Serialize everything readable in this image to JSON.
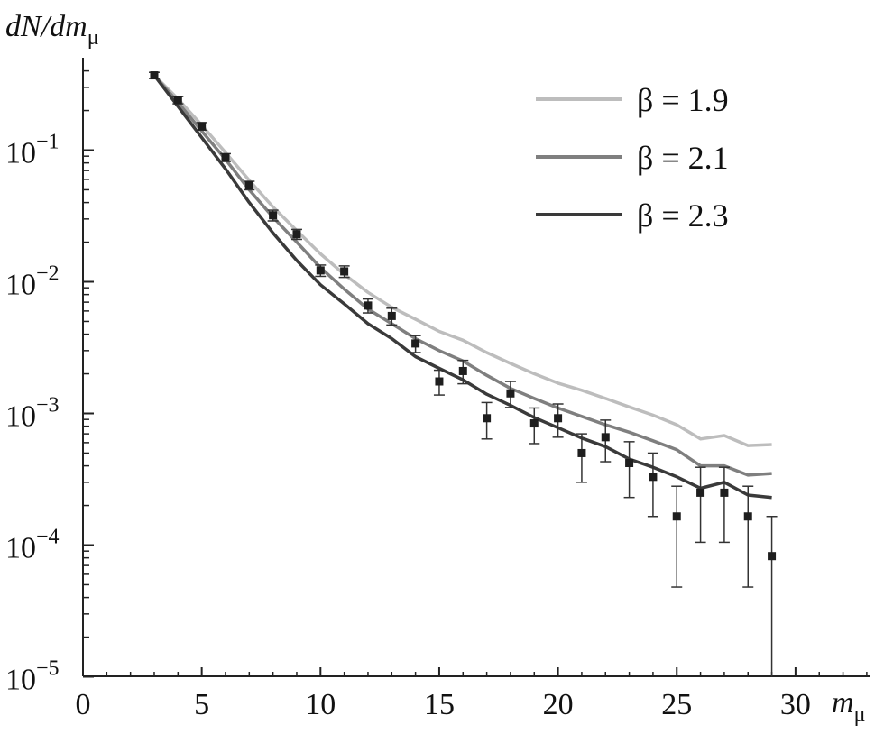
{
  "chart_data": {
    "type": "line",
    "ylabel_main": "dN/dm",
    "ylabel_sub": "μ",
    "xlabel_main": "m",
    "xlabel_sub": "μ",
    "xlim": [
      0,
      33
    ],
    "ylim": [
      1e-05,
      1
    ],
    "yscale": "log",
    "grid": false,
    "legend_position": "top-right",
    "x_ticks": [
      "0",
      "5",
      "10",
      "15",
      "20",
      "25",
      "30"
    ],
    "y_ticks": [
      {
        "base": "10",
        "exp": "−1",
        "value": 0.1
      },
      {
        "base": "10",
        "exp": "−2",
        "value": 0.01
      },
      {
        "base": "10",
        "exp": "−3",
        "value": 0.001
      },
      {
        "base": "10",
        "exp": "−4",
        "value": 0.0001
      },
      {
        "base": "10",
        "exp": "−5",
        "value": 1e-05
      }
    ],
    "series": [
      {
        "name": "β = 1.9",
        "color": "#bdbdbd",
        "x": [
          3,
          4,
          5,
          6,
          7,
          8,
          9,
          10,
          11,
          12,
          13,
          14,
          15,
          16,
          17,
          18,
          19,
          20,
          21,
          22,
          23,
          24,
          25,
          26,
          27,
          28,
          29
        ],
        "y": [
          0.37,
          0.245,
          0.155,
          0.096,
          0.059,
          0.037,
          0.0245,
          0.0163,
          0.0114,
          0.0083,
          0.0064,
          0.0052,
          0.0042,
          0.0036,
          0.0029,
          0.0024,
          0.002,
          0.0017,
          0.0015,
          0.0013,
          0.00112,
          0.00097,
          0.00082,
          0.00064,
          0.00068,
          0.00057,
          0.00058
        ]
      },
      {
        "name": "β = 2.1",
        "color": "#7f7f7f",
        "x": [
          3,
          4,
          5,
          6,
          7,
          8,
          9,
          10,
          11,
          12,
          13,
          14,
          15,
          16,
          17,
          18,
          19,
          20,
          21,
          22,
          23,
          24,
          25,
          26,
          27,
          28,
          29
        ],
        "y": [
          0.37,
          0.23,
          0.14,
          0.085,
          0.05,
          0.031,
          0.02,
          0.0128,
          0.0088,
          0.0062,
          0.0048,
          0.0037,
          0.003,
          0.0025,
          0.00195,
          0.00155,
          0.0013,
          0.0011,
          0.00095,
          0.00082,
          0.00072,
          0.00062,
          0.00053,
          0.0004,
          0.0004,
          0.00034,
          0.00035
        ]
      },
      {
        "name": "β = 2.3",
        "color": "#3a3a3a",
        "x": [
          3,
          4,
          5,
          6,
          7,
          8,
          9,
          10,
          11,
          12,
          13,
          14,
          15,
          16,
          17,
          18,
          19,
          20,
          21,
          22,
          23,
          24,
          25,
          26,
          27,
          28,
          29
        ],
        "y": [
          0.37,
          0.215,
          0.125,
          0.072,
          0.04,
          0.0235,
          0.0145,
          0.0095,
          0.0068,
          0.0048,
          0.0037,
          0.0027,
          0.0022,
          0.0018,
          0.0014,
          0.00115,
          0.00093,
          0.00078,
          0.00065,
          0.00056,
          0.00045,
          0.00039,
          0.00033,
          0.00027,
          0.0003,
          0.00024,
          0.00023
        ]
      }
    ],
    "points": {
      "x": [
        3,
        4,
        5,
        6,
        7,
        8,
        9,
        10,
        11,
        12,
        13,
        14,
        15,
        16,
        17,
        18,
        19,
        20,
        21,
        22,
        23,
        24,
        25,
        26,
        27,
        28,
        29
      ],
      "y": [
        0.37,
        0.24,
        0.152,
        0.088,
        0.054,
        0.032,
        0.023,
        0.0122,
        0.012,
        0.0066,
        0.0055,
        0.0034,
        0.00175,
        0.0021,
        0.00092,
        0.00142,
        0.00084,
        0.00092,
        0.0005,
        0.00066,
        0.00042,
        0.00033,
        0.000165,
        0.00025,
        0.00025,
        0.000165,
        8.25e-05
      ],
      "ylow": [
        0.35,
        0.225,
        0.142,
        0.082,
        0.05,
        0.029,
        0.021,
        0.011,
        0.0108,
        0.0058,
        0.0047,
        0.0029,
        0.00138,
        0.00168,
        0.00064,
        0.00111,
        0.00059,
        0.00066,
        0.0003,
        0.00043,
        0.00023,
        0.000165,
        4.8e-05,
        0.000105,
        0.000105,
        4.8e-05,
        1e-05
      ],
      "yhigh": [
        0.39,
        0.255,
        0.162,
        0.094,
        0.058,
        0.035,
        0.025,
        0.0134,
        0.0132,
        0.0074,
        0.0063,
        0.0039,
        0.00213,
        0.00253,
        0.00121,
        0.00175,
        0.0011,
        0.00118,
        0.0007,
        0.00089,
        0.00061,
        0.0005,
        0.00028,
        0.00039,
        0.00039,
        0.00028,
        0.000165
      ],
      "color": "#1e1e1e"
    }
  }
}
